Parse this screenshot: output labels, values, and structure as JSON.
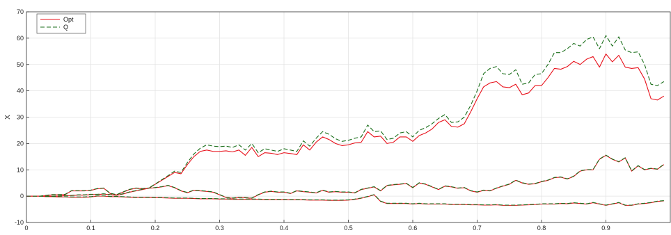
{
  "chart_data": {
    "type": "line",
    "title": "",
    "xlabel": "",
    "ylabel": "X",
    "xlim": [
      0,
      1
    ],
    "ylim": [
      -10,
      70
    ],
    "xticks": [
      0,
      0.1,
      0.2,
      0.3,
      0.4,
      0.5,
      0.6,
      0.7,
      0.8,
      0.9
    ],
    "yticks": [
      -10,
      0,
      10,
      20,
      30,
      40,
      50,
      60,
      70
    ],
    "grid": true,
    "legend_position": "top-left",
    "legend": [
      {
        "label": "Opt",
        "color": "#e8101a",
        "style": "solid"
      },
      {
        "label": "Q",
        "color": "#1a6e1a",
        "style": "dashed"
      }
    ],
    "x": [
      0,
      0.01,
      0.02,
      0.03,
      0.04,
      0.05,
      0.06,
      0.07,
      0.08,
      0.09,
      0.1,
      0.11,
      0.12,
      0.13,
      0.14,
      0.15,
      0.16,
      0.17,
      0.18,
      0.19,
      0.2,
      0.21,
      0.22,
      0.23,
      0.24,
      0.25,
      0.26,
      0.27,
      0.28,
      0.29,
      0.3,
      0.31,
      0.32,
      0.33,
      0.34,
      0.35,
      0.36,
      0.37,
      0.38,
      0.39,
      0.4,
      0.41,
      0.42,
      0.43,
      0.44,
      0.45,
      0.46,
      0.47,
      0.48,
      0.49,
      0.5,
      0.51,
      0.52,
      0.53,
      0.54,
      0.55,
      0.56,
      0.57,
      0.58,
      0.59,
      0.6,
      0.61,
      0.62,
      0.63,
      0.64,
      0.65,
      0.66,
      0.67,
      0.68,
      0.69,
      0.7,
      0.71,
      0.72,
      0.73,
      0.74,
      0.75,
      0.76,
      0.77,
      0.78,
      0.79,
      0.8,
      0.81,
      0.82,
      0.83,
      0.84,
      0.85,
      0.86,
      0.87,
      0.88,
      0.89,
      0.9,
      0.91,
      0.92,
      0.93,
      0.94,
      0.95,
      0.96,
      0.97,
      0.98,
      0.99
    ],
    "series": [
      {
        "color": "#e8101a",
        "style": "solid",
        "values": [
          0,
          0,
          0,
          0,
          0,
          0,
          0.2,
          0.2,
          0.4,
          0.4,
          0.6,
          0.6,
          0.8,
          0.5,
          0.3,
          0.8,
          1.5,
          2,
          2.5,
          3,
          4.5,
          6,
          7.5,
          9,
          8.5,
          12,
          15,
          17,
          17.5,
          17,
          17,
          17.2,
          16.8,
          17.5,
          15.5,
          18.5,
          15,
          16.5,
          16.3,
          15.8,
          16.5,
          16.2,
          15.8,
          19.5,
          17.5,
          20.5,
          22.5,
          21.5,
          20,
          19.2,
          19.5,
          20.2,
          20.5,
          24.5,
          22.5,
          22.8,
          20,
          20.5,
          22.5,
          22.5,
          20.8,
          23,
          24,
          25.5,
          28,
          29,
          26.5,
          26.2,
          27.5,
          32,
          37,
          41.5,
          43,
          43.5,
          41.5,
          41.2,
          42.5,
          38.5,
          39.2,
          42,
          42,
          45,
          48.5,
          48.2,
          49.2,
          51.2,
          50,
          52,
          53,
          49,
          54,
          51,
          53.5,
          49,
          48.5,
          48.8,
          44.5,
          37,
          36.5,
          38
        ]
      },
      {
        "color": "#1a6e1a",
        "style": "dashed",
        "values": [
          0,
          0,
          0,
          0,
          0,
          0.1,
          0.3,
          0.3,
          0.5,
          0.5,
          0.7,
          0.7,
          0.9,
          0.6,
          0.4,
          0.9,
          1.6,
          2.1,
          2.6,
          3.1,
          4.6,
          6.2,
          7.8,
          9.5,
          9,
          12.8,
          16,
          18.2,
          19.5,
          19,
          18.8,
          19,
          18.5,
          19.5,
          17.5,
          20,
          16.5,
          18,
          17.5,
          17,
          18,
          17.5,
          17,
          21,
          19,
          22,
          24.5,
          23.5,
          21.8,
          20.8,
          21.2,
          22,
          22.5,
          27,
          24.5,
          24.8,
          21.5,
          22,
          24,
          24.5,
          22.5,
          25,
          26,
          27.5,
          29.5,
          31,
          28,
          28.2,
          30,
          34.5,
          40,
          46.5,
          48.5,
          49.2,
          46.5,
          46.2,
          48,
          42.5,
          43,
          46.2,
          46.5,
          50,
          54.5,
          54.5,
          56,
          58,
          57,
          59.5,
          60.5,
          56,
          61,
          57,
          60.5,
          55.5,
          54.5,
          54.8,
          50,
          42.5,
          42,
          43.5
        ]
      },
      {
        "color": "#e8101a",
        "style": "solid",
        "values": [
          0,
          0,
          0,
          0.2,
          0.5,
          0.5,
          0.6,
          2,
          2,
          2,
          2.2,
          2.8,
          3,
          1,
          0.5,
          1.5,
          2.5,
          3,
          2.8,
          3,
          3.2,
          3.5,
          4,
          3.2,
          2,
          1.3,
          2.2,
          2,
          1.8,
          1.5,
          0.5,
          -0.5,
          -0.8,
          -0.5,
          -0.6,
          -0.8,
          0.5,
          1.5,
          1.8,
          1.5,
          1.5,
          1,
          2,
          1.7,
          1.5,
          1.2,
          2.2,
          1.5,
          1.7,
          1.5,
          1.5,
          1.2,
          2.5,
          3,
          3.5,
          2,
          4,
          4.3,
          4.5,
          4.8,
          3.2,
          5,
          4.5,
          3.5,
          2.5,
          3.8,
          3.5,
          3,
          3.2,
          2,
          1.5,
          2.2,
          2,
          3,
          3.8,
          4.5,
          6,
          5,
          4.5,
          4.7,
          5.5,
          6,
          7,
          7.2,
          6.5,
          7.5,
          9.5,
          10,
          10,
          14,
          15.5,
          14,
          13,
          14.5,
          9.5,
          11.5,
          10,
          10.5,
          10.2,
          12
        ]
      },
      {
        "color": "#1a6e1a",
        "style": "dashed",
        "values": [
          0,
          0,
          0,
          0.3,
          0.6,
          0.6,
          0.7,
          2.1,
          2.1,
          2.1,
          2.3,
          2.9,
          3.1,
          1.1,
          0.6,
          1.6,
          2.6,
          3.1,
          2.9,
          3.1,
          3.3,
          3.6,
          4.1,
          3.3,
          2.1,
          1.4,
          2.3,
          2.1,
          1.9,
          1.6,
          0.6,
          -0.4,
          -0.7,
          -0.4,
          -0.5,
          -0.7,
          0.6,
          1.6,
          1.9,
          1.6,
          1.6,
          1.1,
          2.1,
          1.8,
          1.6,
          1.3,
          2.3,
          1.6,
          1.8,
          1.6,
          1.6,
          1.3,
          2.6,
          3.1,
          3.6,
          2.1,
          4.1,
          4.4,
          4.6,
          4.9,
          3.3,
          5.1,
          4.6,
          3.6,
          2.6,
          3.9,
          3.6,
          3.1,
          3.3,
          2.1,
          1.6,
          2.3,
          2.1,
          3.1,
          3.9,
          4.6,
          6.1,
          5.1,
          4.6,
          4.8,
          5.6,
          6.1,
          7.1,
          7.3,
          6.6,
          7.6,
          9.6,
          10.1,
          10.1,
          14.1,
          15.6,
          14.1,
          13.1,
          14.6,
          9.6,
          11.6,
          10.1,
          10.6,
          10.3,
          12.1
        ]
      },
      {
        "color": "#e8101a",
        "style": "solid",
        "values": [
          0,
          0,
          0,
          -0.2,
          -0.2,
          -0.3,
          -0.3,
          -0.4,
          -0.4,
          -0.4,
          -0.3,
          0,
          0,
          -0.2,
          -0.2,
          -0.3,
          -0.4,
          -0.5,
          -0.5,
          -0.5,
          -0.6,
          -0.6,
          -0.7,
          -0.8,
          -0.8,
          -0.8,
          -0.9,
          -1,
          -1,
          -1,
          -1.1,
          -1.1,
          -1.2,
          -1.2,
          -1.2,
          -1.2,
          -1.2,
          -1.3,
          -1.3,
          -1.3,
          -1.3,
          -1.4,
          -1.4,
          -1.4,
          -1.5,
          -1.5,
          -1.5,
          -1.6,
          -1.6,
          -1.6,
          -1.5,
          -1.2,
          -0.8,
          -0.2,
          0.5,
          -2,
          -2.8,
          -2.8,
          -2.8,
          -2.8,
          -3,
          -2.8,
          -3,
          -3,
          -3,
          -3,
          -3.2,
          -3.2,
          -3.2,
          -3.3,
          -3.3,
          -3.4,
          -3.4,
          -3.3,
          -3.5,
          -3.5,
          -3.5,
          -3.4,
          -3.3,
          -3.2,
          -3,
          -3,
          -3,
          -2.8,
          -2.9,
          -2.6,
          -2.8,
          -3,
          -2.5,
          -3,
          -3.5,
          -3,
          -2.5,
          -3.5,
          -3.5,
          -3,
          -2.8,
          -2.5,
          -2,
          -1.8
        ]
      },
      {
        "color": "#1a6e1a",
        "style": "dashed",
        "values": [
          0,
          0,
          0,
          -0.1,
          -0.1,
          -0.2,
          -0.2,
          -0.3,
          -0.3,
          -0.3,
          -0.2,
          0.1,
          0.1,
          -0.1,
          -0.1,
          -0.2,
          -0.3,
          -0.4,
          -0.4,
          -0.4,
          -0.5,
          -0.5,
          -0.6,
          -0.7,
          -0.7,
          -0.7,
          -0.8,
          -0.9,
          -0.9,
          -0.9,
          -1,
          -1,
          -1.1,
          -1.1,
          -1.1,
          -1.1,
          -1.1,
          -1.2,
          -1.2,
          -1.2,
          -1.2,
          -1.3,
          -1.3,
          -1.3,
          -1.4,
          -1.4,
          -1.4,
          -1.5,
          -1.5,
          -1.5,
          -1.4,
          -1.1,
          -0.7,
          -0.1,
          0.6,
          -1.9,
          -2.7,
          -2.7,
          -2.7,
          -2.7,
          -2.9,
          -2.7,
          -2.9,
          -2.9,
          -2.9,
          -2.9,
          -3.1,
          -3.1,
          -3.1,
          -3.2,
          -3.2,
          -3.3,
          -3.3,
          -3.2,
          -3.4,
          -3.4,
          -3.4,
          -3.3,
          -3.2,
          -3.1,
          -2.9,
          -2.9,
          -2.9,
          -2.7,
          -2.8,
          -2.5,
          -2.7,
          -2.9,
          -2.4,
          -2.9,
          -3.4,
          -2.9,
          -2.4,
          -3.4,
          -3.4,
          -2.9,
          -2.7,
          -2.4,
          -1.9,
          -1.7
        ]
      }
    ]
  }
}
